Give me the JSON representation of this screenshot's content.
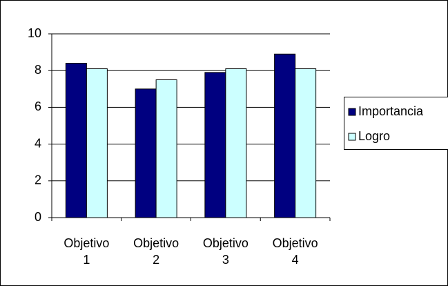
{
  "chart_data": {
    "type": "bar",
    "categories": [
      "Objetivo 1",
      "Objetivo 2",
      "Objetivo 3",
      "Objetivo 4"
    ],
    "series": [
      {
        "name": "Importancia",
        "color": "#000080",
        "values": [
          8.4,
          7.0,
          7.9,
          8.9
        ]
      },
      {
        "name": "Logro",
        "color": "#ccffff",
        "values": [
          8.1,
          7.5,
          8.1,
          8.1
        ]
      }
    ],
    "ylim": [
      0,
      10
    ],
    "yticks": [
      0,
      2,
      4,
      6,
      8,
      10
    ],
    "grid": true,
    "legend": "right"
  }
}
